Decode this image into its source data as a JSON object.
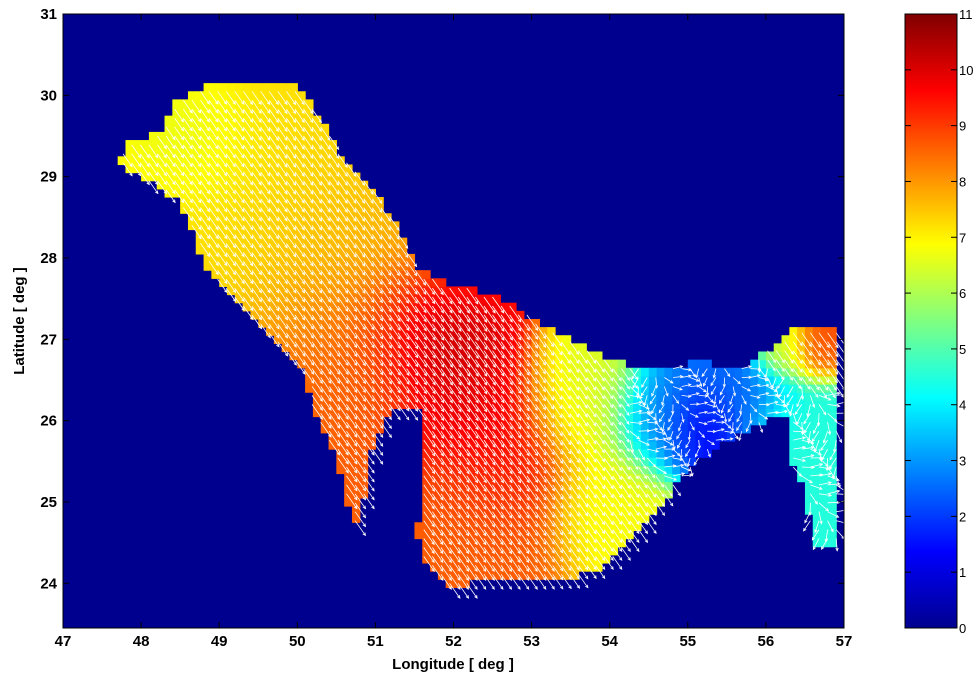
{
  "chart_data": {
    "type": "heatmap",
    "overlay": "quiver",
    "xlabel": "Longitude [ deg ]",
    "ylabel": "Latitude [ deg ]",
    "xlim": [
      47,
      57
    ],
    "ylim": [
      23.45,
      31
    ],
    "xticks": [
      "47",
      "48",
      "49",
      "50",
      "51",
      "52",
      "53",
      "54",
      "55",
      "56",
      "57"
    ],
    "yticks": [
      "24",
      "25",
      "26",
      "27",
      "28",
      "29",
      "30",
      "31"
    ],
    "colormap": "jet",
    "colorbar": {
      "range": [
        0,
        11
      ],
      "ticks": [
        "0",
        "1",
        "2",
        "3",
        "4",
        "5",
        "6",
        "7",
        "8",
        "9",
        "10",
        "11"
      ]
    },
    "background_value": 0,
    "arrow_color": "#ffffff",
    "region_outline": [
      [
        47.8,
        29.4
      ],
      [
        48.3,
        29.55
      ],
      [
        48.4,
        29.9
      ],
      [
        48.9,
        30.15
      ],
      [
        49.3,
        30.1
      ],
      [
        50.0,
        30.15
      ],
      [
        50.3,
        29.7
      ],
      [
        50.6,
        29.2
      ],
      [
        51.0,
        28.8
      ],
      [
        51.3,
        28.35
      ],
      [
        51.5,
        27.9
      ],
      [
        51.9,
        27.7
      ],
      [
        52.5,
        27.55
      ],
      [
        53.3,
        27.1
      ],
      [
        54.0,
        26.75
      ],
      [
        54.6,
        26.6
      ],
      [
        55.2,
        26.75
      ],
      [
        55.6,
        26.6
      ],
      [
        56.0,
        26.85
      ],
      [
        56.3,
        27.1
      ],
      [
        56.9,
        27.15
      ],
      [
        56.9,
        24.5
      ],
      [
        56.6,
        24.5
      ],
      [
        56.5,
        25.2
      ],
      [
        56.3,
        25.5
      ],
      [
        56.25,
        26.1
      ],
      [
        55.6,
        25.8
      ],
      [
        55.1,
        25.5
      ],
      [
        54.6,
        24.9
      ],
      [
        54.0,
        24.25
      ],
      [
        53.5,
        24.05
      ],
      [
        52.6,
        24.05
      ],
      [
        51.9,
        23.95
      ],
      [
        51.6,
        24.3
      ],
      [
        51.5,
        24.8
      ],
      [
        51.6,
        25.4
      ],
      [
        51.5,
        26.0
      ],
      [
        51.2,
        26.2
      ],
      [
        50.9,
        25.5
      ],
      [
        50.8,
        24.6
      ],
      [
        50.6,
        25.1
      ],
      [
        50.5,
        25.6
      ],
      [
        50.2,
        26.1
      ],
      [
        50.1,
        26.6
      ],
      [
        49.7,
        27.0
      ],
      [
        49.3,
        27.4
      ],
      [
        48.9,
        27.8
      ],
      [
        48.7,
        28.2
      ],
      [
        48.5,
        28.7
      ],
      [
        48.0,
        29.0
      ],
      [
        47.7,
        29.2
      ]
    ],
    "island_outline": [
      [
        51.6,
        26.15
      ],
      [
        51.3,
        26.2
      ],
      [
        51.1,
        25.95
      ],
      [
        51.1,
        25.3
      ],
      [
        51.25,
        24.9
      ],
      [
        51.5,
        24.55
      ],
      [
        51.6,
        25.0
      ],
      [
        51.55,
        25.5
      ]
    ],
    "value_field": [
      {
        "x": 51.8,
        "y": 26.9,
        "value": 10.6,
        "spread": 0.5
      },
      {
        "x": 51.6,
        "y": 27.2,
        "value": 10.2,
        "spread": 0.6
      },
      {
        "x": 52.2,
        "y": 26.3,
        "value": 10.0,
        "spread": 0.65
      },
      {
        "x": 52.6,
        "y": 25.6,
        "value": 9.6,
        "spread": 0.7
      },
      {
        "x": 52.3,
        "y": 24.8,
        "value": 8.6,
        "spread": 0.8
      },
      {
        "x": 51.0,
        "y": 27.0,
        "value": 8.6,
        "spread": 0.9
      },
      {
        "x": 50.7,
        "y": 28.2,
        "value": 7.6,
        "spread": 1.0
      },
      {
        "x": 49.6,
        "y": 29.2,
        "value": 7.2,
        "spread": 1.2
      },
      {
        "x": 48.7,
        "y": 29.5,
        "value": 6.5,
        "spread": 0.6
      },
      {
        "x": 53.6,
        "y": 26.2,
        "value": 6.5,
        "spread": 0.6
      },
      {
        "x": 54.0,
        "y": 25.0,
        "value": 6.8,
        "spread": 0.6
      },
      {
        "x": 54.7,
        "y": 26.0,
        "value": 2.8,
        "spread": 0.5
      },
      {
        "x": 55.2,
        "y": 25.9,
        "value": 1.0,
        "spread": 0.4
      },
      {
        "x": 55.6,
        "y": 26.3,
        "value": 2.5,
        "spread": 0.5
      },
      {
        "x": 56.5,
        "y": 25.8,
        "value": 4.5,
        "spread": 0.6
      },
      {
        "x": 56.7,
        "y": 26.9,
        "value": 8.8,
        "spread": 0.3
      },
      {
        "x": 56.2,
        "y": 26.9,
        "value": 6.5,
        "spread": 0.3
      }
    ],
    "flow_direction_deg": -55
  }
}
